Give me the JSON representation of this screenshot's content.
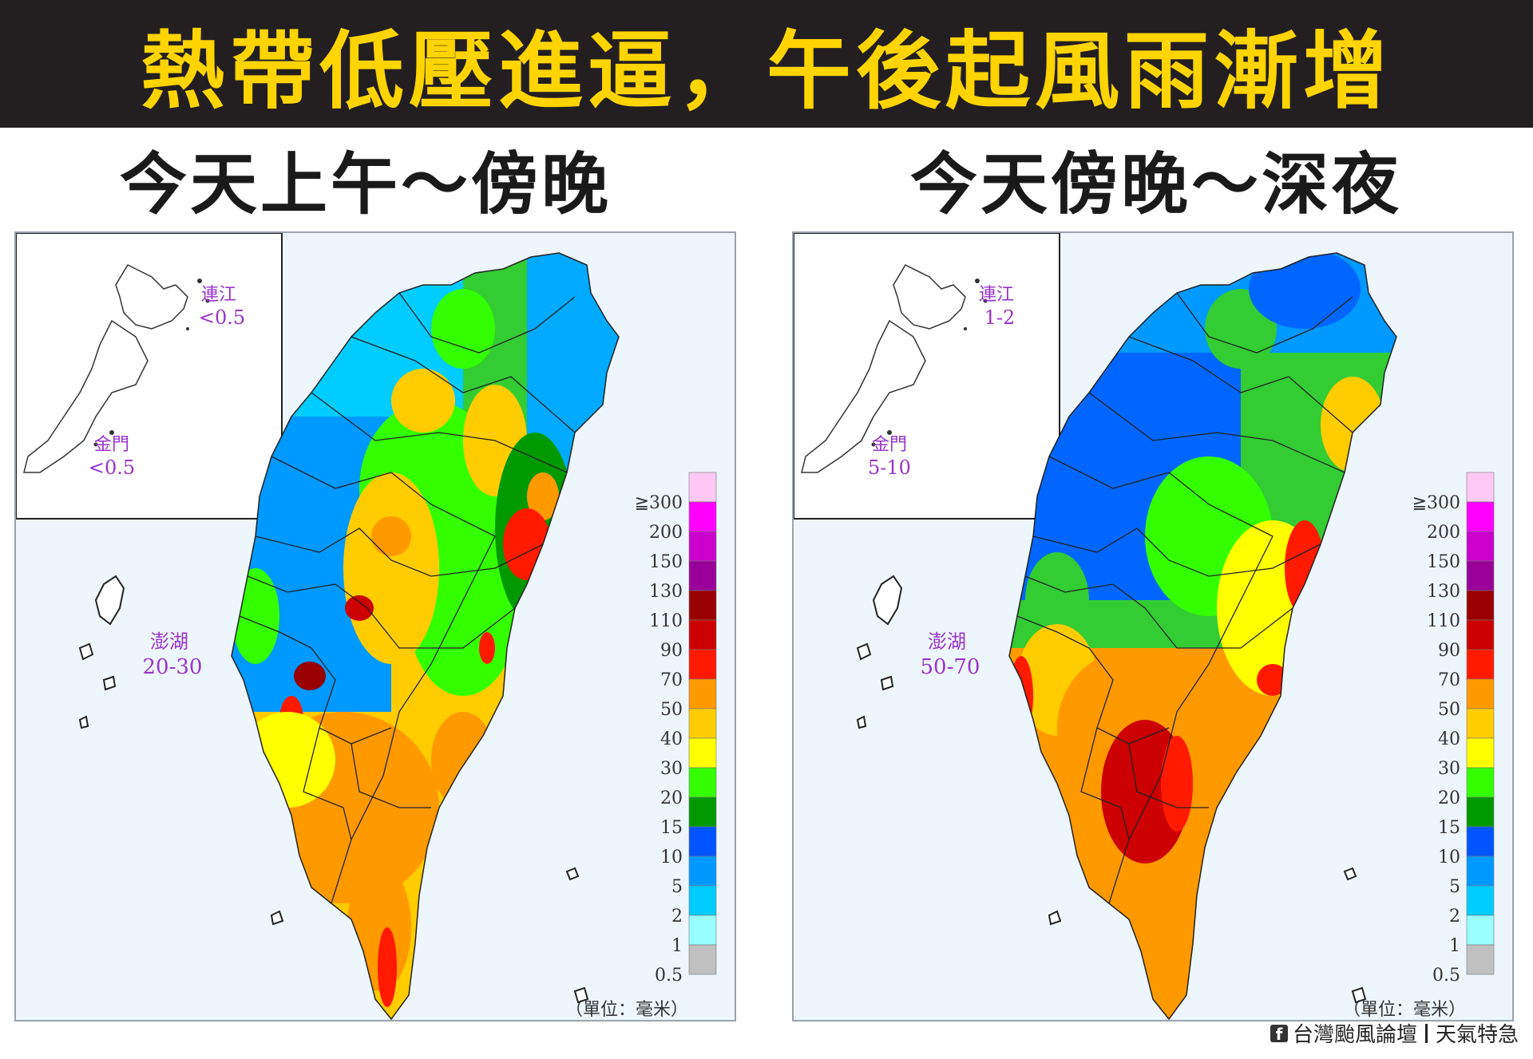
{
  "headline": "熱帶低壓進逼，午後起風雨漸增",
  "panels": [
    {
      "title": "今天上午～傍晚",
      "inset": {
        "lienchiang_label": "連江",
        "lienchiang_value": "<0.5",
        "kinmen_label": "金門",
        "kinmen_value": "<0.5"
      },
      "penghu_label": "澎湖",
      "penghu_value": "20-30"
    },
    {
      "title": "今天傍晚～深夜",
      "inset": {
        "lienchiang_label": "連江",
        "lienchiang_value": "1-2",
        "kinmen_label": "金門",
        "kinmen_value": "5-10"
      },
      "penghu_label": "澎湖",
      "penghu_value": "50-70"
    }
  ],
  "legend": {
    "unit": "（單位：毫米）",
    "levels": [
      {
        "label": "≧300",
        "color": "#ffc8f5"
      },
      {
        "label": "200",
        "color": "#ff00ff"
      },
      {
        "label": "150",
        "color": "#cc00cc"
      },
      {
        "label": "130",
        "color": "#99009a"
      },
      {
        "label": "110",
        "color": "#990000"
      },
      {
        "label": "90",
        "color": "#cc0000"
      },
      {
        "label": "70",
        "color": "#ff1a00"
      },
      {
        "label": "50",
        "color": "#ff9900"
      },
      {
        "label": "40",
        "color": "#ffcc00"
      },
      {
        "label": "30",
        "color": "#ffff00"
      },
      {
        "label": "20",
        "color": "#33ff00"
      },
      {
        "label": "15",
        "color": "#009900"
      },
      {
        "label": "10",
        "color": "#0055ff"
      },
      {
        "label": "5",
        "color": "#0099ff"
      },
      {
        "label": "2",
        "color": "#00ccff"
      },
      {
        "label": "1",
        "color": "#99ffff"
      },
      {
        "label": "0.5",
        "color": "#c0c0c0"
      }
    ]
  },
  "credit": {
    "fb_icon": "f",
    "source": "台灣颱風論壇",
    "page": "天氣特急"
  }
}
